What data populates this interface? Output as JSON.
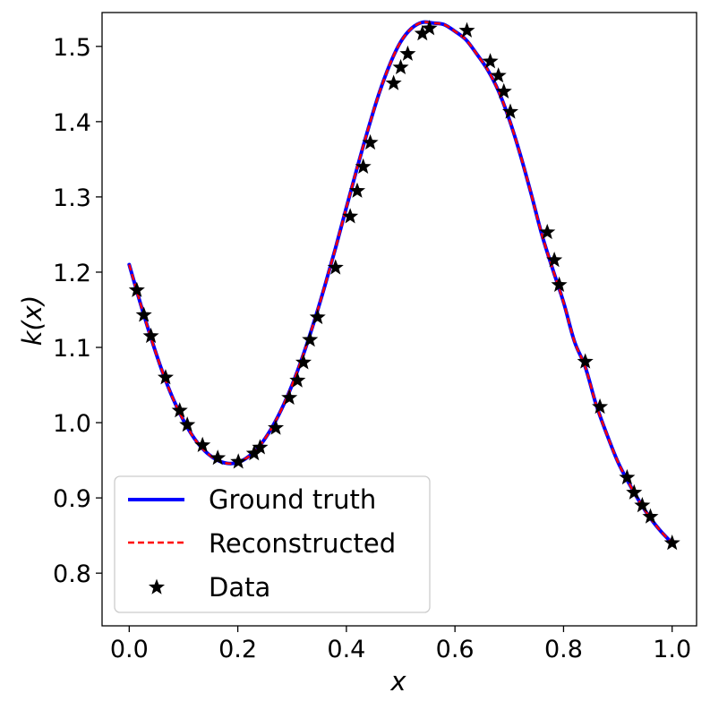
{
  "chart_data": {
    "type": "line",
    "xlabel": "x",
    "ylabel": "k(x)",
    "xlim": [
      -0.05,
      1.045
    ],
    "ylim": [
      0.73,
      1.545
    ],
    "x_ticks": [
      "0.0",
      "0.2",
      "0.4",
      "0.6",
      "0.8",
      "1.0"
    ],
    "y_ticks": [
      "0.8",
      "0.9",
      "1.0",
      "1.1",
      "1.2",
      "1.3",
      "1.4",
      "1.5"
    ],
    "legend_position": "lower-left",
    "series": [
      {
        "name": "Ground truth",
        "style": "solid",
        "color": "#0000ff",
        "x": [
          0.0,
          0.02,
          0.04,
          0.06,
          0.08,
          0.1,
          0.12,
          0.14,
          0.16,
          0.18,
          0.2,
          0.22,
          0.24,
          0.26,
          0.28,
          0.3,
          0.32,
          0.34,
          0.36,
          0.38,
          0.4,
          0.42,
          0.44,
          0.46,
          0.48,
          0.5,
          0.52,
          0.54,
          0.56,
          0.58,
          0.6,
          0.62,
          0.64,
          0.66,
          0.68,
          0.7,
          0.72,
          0.74,
          0.76,
          0.78,
          0.8,
          0.82,
          0.84,
          0.86,
          0.88,
          0.9,
          0.92,
          0.94,
          0.96,
          0.98,
          1.0
        ],
        "y": [
          1.21,
          1.16,
          1.113,
          1.07,
          1.033,
          1.003,
          0.979,
          0.962,
          0.951,
          0.946,
          0.947,
          0.955,
          0.969,
          0.99,
          1.017,
          1.05,
          1.089,
          1.133,
          1.181,
          1.232,
          1.286,
          1.339,
          1.39,
          1.437,
          1.476,
          1.506,
          1.524,
          1.532,
          1.531,
          1.529,
          1.52,
          1.509,
          1.49,
          1.469,
          1.441,
          1.403,
          1.357,
          1.305,
          1.25,
          1.204,
          1.16,
          1.108,
          1.074,
          1.024,
          0.984,
          0.948,
          0.92,
          0.895,
          0.873,
          0.855,
          0.84
        ]
      },
      {
        "name": "Reconstructed",
        "style": "dashed",
        "color": "#ff0000",
        "x": [
          0.0,
          0.02,
          0.04,
          0.06,
          0.08,
          0.1,
          0.12,
          0.14,
          0.16,
          0.18,
          0.2,
          0.22,
          0.24,
          0.26,
          0.28,
          0.3,
          0.32,
          0.34,
          0.36,
          0.38,
          0.4,
          0.42,
          0.44,
          0.46,
          0.48,
          0.5,
          0.52,
          0.54,
          0.56,
          0.58,
          0.6,
          0.62,
          0.64,
          0.66,
          0.68,
          0.7,
          0.72,
          0.74,
          0.76,
          0.78,
          0.8,
          0.82,
          0.84,
          0.86,
          0.88,
          0.9,
          0.92,
          0.94,
          0.96,
          0.98,
          1.0
        ],
        "y": [
          1.21,
          1.16,
          1.113,
          1.07,
          1.033,
          1.003,
          0.979,
          0.962,
          0.951,
          0.946,
          0.947,
          0.955,
          0.969,
          0.99,
          1.017,
          1.05,
          1.089,
          1.133,
          1.181,
          1.232,
          1.286,
          1.339,
          1.39,
          1.437,
          1.476,
          1.506,
          1.524,
          1.532,
          1.531,
          1.529,
          1.52,
          1.509,
          1.49,
          1.469,
          1.441,
          1.403,
          1.357,
          1.305,
          1.25,
          1.204,
          1.16,
          1.108,
          1.074,
          1.024,
          0.984,
          0.948,
          0.92,
          0.895,
          0.873,
          0.855,
          0.84
        ]
      },
      {
        "name": "Data",
        "style": "star-markers",
        "color": "#000000",
        "x": [
          0.014,
          0.027,
          0.04,
          0.067,
          0.093,
          0.107,
          0.135,
          0.163,
          0.201,
          0.23,
          0.241,
          0.27,
          0.295,
          0.31,
          0.321,
          0.333,
          0.347,
          0.38,
          0.407,
          0.42,
          0.431,
          0.444,
          0.487,
          0.5,
          0.513,
          0.54,
          0.553,
          0.622,
          0.665,
          0.68,
          0.69,
          0.702,
          0.77,
          0.783,
          0.792,
          0.84,
          0.867,
          0.917,
          0.93,
          0.945,
          0.96,
          1.0
        ],
        "y": [
          1.176,
          1.143,
          1.115,
          1.06,
          1.016,
          0.997,
          0.97,
          0.953,
          0.948,
          0.959,
          0.967,
          0.993,
          1.033,
          1.056,
          1.08,
          1.11,
          1.14,
          1.206,
          1.274,
          1.308,
          1.34,
          1.372,
          1.451,
          1.472,
          1.49,
          1.517,
          1.524,
          1.521,
          1.48,
          1.461,
          1.44,
          1.413,
          1.253,
          1.216,
          1.183,
          1.081,
          1.021,
          0.927,
          0.907,
          0.89,
          0.875,
          0.84
        ]
      }
    ]
  }
}
